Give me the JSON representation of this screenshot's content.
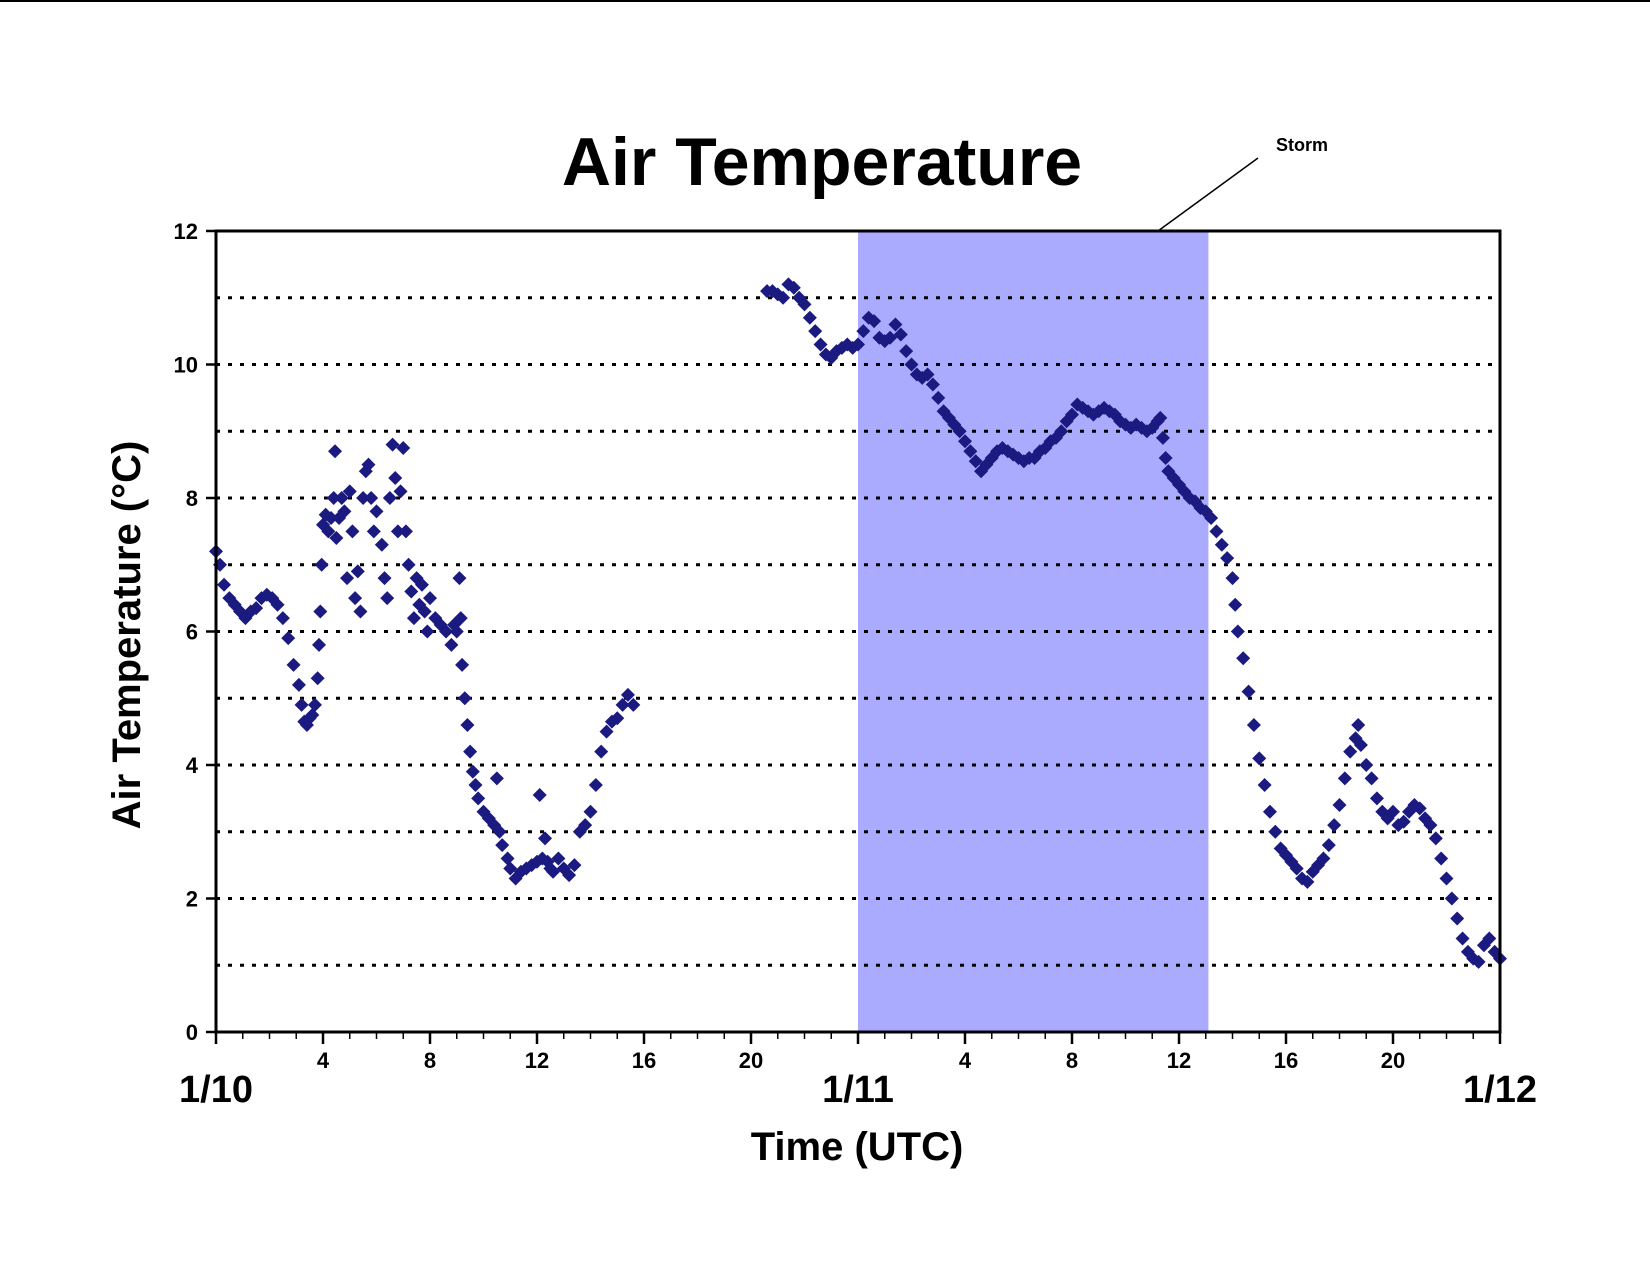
{
  "chart_data": {
    "type": "scatter",
    "title": "Air Temperature",
    "xlabel": "Time (UTC)",
    "ylabel": "Air Temperature (°C)",
    "xlim_hours": [
      0,
      48
    ],
    "ylim": [
      0,
      12
    ],
    "y_ticks": [
      0,
      2,
      4,
      6,
      8,
      10,
      12
    ],
    "y_gridlines_dotted": [
      1,
      2,
      3,
      4,
      5,
      6,
      7,
      8,
      9,
      10,
      11
    ],
    "x_hour_ticks": [
      {
        "h": 4,
        "label": "4"
      },
      {
        "h": 8,
        "label": "8"
      },
      {
        "h": 12,
        "label": "12"
      },
      {
        "h": 16,
        "label": "16"
      },
      {
        "h": 20,
        "label": "20"
      },
      {
        "h": 28,
        "label": "4"
      },
      {
        "h": 32,
        "label": "8"
      },
      {
        "h": 36,
        "label": "12"
      },
      {
        "h": 40,
        "label": "16"
      },
      {
        "h": 44,
        "label": "20"
      }
    ],
    "x_date_labels": [
      {
        "h": 0,
        "label": "1/10"
      },
      {
        "h": 24,
        "label": "1/11"
      },
      {
        "h": 48,
        "label": "1/12"
      }
    ],
    "annotation": {
      "text": "Storm",
      "shaded_range_hours": [
        24,
        37.1
      ],
      "color": "#AAAAFF"
    },
    "marker_color": "#1A1A80",
    "series": [
      {
        "segment": "1/10 early",
        "points": [
          [
            0.0,
            7.2
          ],
          [
            0.15,
            7.0
          ],
          [
            0.3,
            6.7
          ],
          [
            0.5,
            6.5
          ],
          [
            0.7,
            6.4
          ],
          [
            0.9,
            6.3
          ],
          [
            1.1,
            6.2
          ],
          [
            1.3,
            6.3
          ],
          [
            1.5,
            6.35
          ],
          [
            1.7,
            6.5
          ],
          [
            1.9,
            6.55
          ],
          [
            2.1,
            6.5
          ],
          [
            2.3,
            6.4
          ],
          [
            2.5,
            6.2
          ],
          [
            2.7,
            5.9
          ],
          [
            2.9,
            5.5
          ],
          [
            3.1,
            5.2
          ],
          [
            3.2,
            4.9
          ],
          [
            3.3,
            4.65
          ],
          [
            3.4,
            4.6
          ],
          [
            3.5,
            4.7
          ],
          [
            3.6,
            4.75
          ],
          [
            3.7,
            4.9
          ],
          [
            3.8,
            5.3
          ],
          [
            3.85,
            5.8
          ],
          [
            3.9,
            6.3
          ],
          [
            3.95,
            7.0
          ],
          [
            4.0,
            7.6
          ],
          [
            4.1,
            7.75
          ],
          [
            4.2,
            7.5
          ],
          [
            4.3,
            7.7
          ],
          [
            4.4,
            8.0
          ],
          [
            4.45,
            8.7
          ],
          [
            4.5,
            7.4
          ],
          [
            4.6,
            7.7
          ],
          [
            4.7,
            8.0
          ],
          [
            4.8,
            7.8
          ],
          [
            4.9,
            6.8
          ],
          [
            5.0,
            8.1
          ],
          [
            5.1,
            7.5
          ],
          [
            5.2,
            6.5
          ],
          [
            5.3,
            6.9
          ],
          [
            5.4,
            6.3
          ],
          [
            5.5,
            8.0
          ],
          [
            5.6,
            8.4
          ],
          [
            5.7,
            8.5
          ],
          [
            5.8,
            8.0
          ],
          [
            5.9,
            7.5
          ],
          [
            6.0,
            7.8
          ],
          [
            6.2,
            7.3
          ],
          [
            6.3,
            6.8
          ],
          [
            6.4,
            6.5
          ],
          [
            6.5,
            8.0
          ],
          [
            6.6,
            8.8
          ],
          [
            6.7,
            8.3
          ],
          [
            6.8,
            7.5
          ],
          [
            6.9,
            8.1
          ],
          [
            7.0,
            8.75
          ],
          [
            7.1,
            7.5
          ],
          [
            7.2,
            7.0
          ],
          [
            7.3,
            6.6
          ],
          [
            7.4,
            6.2
          ],
          [
            7.5,
            6.8
          ],
          [
            7.6,
            6.4
          ],
          [
            7.7,
            6.7
          ],
          [
            7.8,
            6.3
          ],
          [
            7.9,
            6.0
          ],
          [
            8.0,
            6.5
          ],
          [
            8.2,
            6.2
          ],
          [
            8.4,
            6.1
          ],
          [
            8.6,
            6.0
          ],
          [
            8.8,
            5.8
          ],
          [
            8.9,
            6.1
          ],
          [
            9.0,
            6.0
          ],
          [
            9.1,
            6.8
          ],
          [
            9.15,
            6.2
          ],
          [
            9.2,
            5.5
          ],
          [
            9.3,
            5.0
          ]
        ]
      },
      {
        "segment": "1/10 afternoon",
        "points": [
          [
            9.4,
            4.6
          ],
          [
            9.5,
            4.2
          ],
          [
            9.6,
            3.9
          ],
          [
            9.7,
            3.7
          ],
          [
            9.8,
            3.5
          ],
          [
            10.0,
            3.3
          ],
          [
            10.2,
            3.2
          ],
          [
            10.4,
            3.1
          ],
          [
            10.5,
            3.8
          ],
          [
            10.6,
            3.0
          ],
          [
            10.7,
            2.8
          ],
          [
            10.9,
            2.6
          ],
          [
            11.0,
            2.45
          ],
          [
            11.2,
            2.3
          ],
          [
            11.4,
            2.4
          ],
          [
            11.6,
            2.45
          ],
          [
            11.8,
            2.5
          ],
          [
            12.0,
            2.55
          ],
          [
            12.1,
            3.55
          ],
          [
            12.2,
            2.6
          ],
          [
            12.3,
            2.9
          ],
          [
            12.4,
            2.55
          ],
          [
            12.5,
            2.45
          ],
          [
            12.6,
            2.4
          ],
          [
            12.8,
            2.6
          ],
          [
            13.0,
            2.45
          ],
          [
            13.2,
            2.35
          ],
          [
            13.4,
            2.5
          ],
          [
            13.6,
            3.0
          ],
          [
            13.8,
            3.1
          ],
          [
            14.0,
            3.3
          ],
          [
            14.2,
            3.7
          ],
          [
            14.4,
            4.2
          ],
          [
            14.6,
            4.5
          ],
          [
            14.8,
            4.65
          ],
          [
            15.0,
            4.7
          ],
          [
            15.2,
            4.9
          ],
          [
            15.4,
            5.05
          ],
          [
            15.6,
            4.9
          ]
        ]
      },
      {
        "segment": "1/10 night to 1/11",
        "points": [
          [
            20.6,
            11.1
          ],
          [
            20.8,
            11.1
          ],
          [
            21.0,
            11.05
          ],
          [
            21.2,
            11.0
          ],
          [
            21.4,
            11.2
          ],
          [
            21.6,
            11.15
          ],
          [
            21.8,
            11.0
          ],
          [
            22.0,
            10.9
          ],
          [
            22.2,
            10.7
          ],
          [
            22.4,
            10.5
          ],
          [
            22.6,
            10.3
          ],
          [
            22.8,
            10.15
          ],
          [
            23.0,
            10.1
          ],
          [
            23.2,
            10.2
          ],
          [
            23.4,
            10.25
          ],
          [
            23.6,
            10.3
          ],
          [
            23.8,
            10.25
          ],
          [
            24.0,
            10.3
          ],
          [
            24.2,
            10.5
          ],
          [
            24.4,
            10.7
          ],
          [
            24.6,
            10.65
          ],
          [
            24.8,
            10.4
          ],
          [
            25.0,
            10.35
          ],
          [
            25.2,
            10.4
          ],
          [
            25.4,
            10.6
          ],
          [
            25.6,
            10.45
          ],
          [
            25.8,
            10.2
          ],
          [
            26.0,
            10.0
          ],
          [
            26.2,
            9.85
          ],
          [
            26.4,
            9.8
          ],
          [
            26.6,
            9.85
          ],
          [
            26.8,
            9.7
          ],
          [
            27.0,
            9.5
          ],
          [
            27.2,
            9.3
          ],
          [
            27.4,
            9.2
          ],
          [
            27.6,
            9.1
          ],
          [
            27.8,
            9.0
          ],
          [
            28.0,
            8.85
          ],
          [
            28.2,
            8.7
          ],
          [
            28.4,
            8.55
          ],
          [
            28.6,
            8.4
          ],
          [
            28.8,
            8.5
          ],
          [
            29.0,
            8.6
          ],
          [
            29.2,
            8.7
          ],
          [
            29.4,
            8.75
          ],
          [
            29.6,
            8.7
          ],
          [
            29.8,
            8.65
          ],
          [
            30.0,
            8.6
          ],
          [
            30.2,
            8.55
          ],
          [
            30.4,
            8.6
          ],
          [
            30.6,
            8.6
          ],
          [
            30.8,
            8.7
          ],
          [
            31.0,
            8.75
          ],
          [
            31.2,
            8.85
          ],
          [
            31.4,
            8.9
          ],
          [
            31.6,
            9.0
          ],
          [
            31.8,
            9.15
          ],
          [
            32.0,
            9.25
          ],
          [
            32.2,
            9.4
          ],
          [
            32.4,
            9.35
          ],
          [
            32.6,
            9.3
          ],
          [
            32.8,
            9.25
          ],
          [
            33.0,
            9.3
          ],
          [
            33.2,
            9.35
          ],
          [
            33.4,
            9.3
          ],
          [
            33.6,
            9.25
          ],
          [
            33.8,
            9.15
          ],
          [
            34.0,
            9.1
          ],
          [
            34.2,
            9.05
          ],
          [
            34.4,
            9.1
          ],
          [
            34.6,
            9.05
          ],
          [
            34.8,
            9.0
          ],
          [
            35.0,
            9.05
          ],
          [
            35.2,
            9.15
          ],
          [
            35.3,
            9.2
          ],
          [
            35.4,
            8.9
          ],
          [
            35.5,
            8.6
          ],
          [
            35.6,
            8.4
          ],
          [
            35.8,
            8.3
          ],
          [
            36.0,
            8.2
          ],
          [
            36.2,
            8.1
          ],
          [
            36.4,
            8.0
          ],
          [
            36.6,
            7.95
          ],
          [
            36.8,
            7.85
          ],
          [
            37.0,
            7.8
          ],
          [
            37.2,
            7.7
          ],
          [
            37.4,
            7.5
          ],
          [
            37.6,
            7.3
          ],
          [
            37.8,
            7.1
          ],
          [
            38.0,
            6.8
          ],
          [
            38.1,
            6.4
          ],
          [
            38.2,
            6.0
          ],
          [
            38.4,
            5.6
          ],
          [
            38.6,
            5.1
          ],
          [
            38.8,
            4.6
          ],
          [
            39.0,
            4.1
          ],
          [
            39.2,
            3.7
          ],
          [
            39.4,
            3.3
          ],
          [
            39.6,
            3.0
          ],
          [
            39.8,
            2.75
          ],
          [
            40.0,
            2.65
          ],
          [
            40.2,
            2.55
          ],
          [
            40.4,
            2.45
          ],
          [
            40.6,
            2.3
          ],
          [
            40.8,
            2.25
          ],
          [
            41.0,
            2.4
          ],
          [
            41.2,
            2.5
          ],
          [
            41.4,
            2.6
          ],
          [
            41.6,
            2.8
          ],
          [
            41.8,
            3.1
          ],
          [
            42.0,
            3.4
          ],
          [
            42.2,
            3.8
          ],
          [
            42.4,
            4.2
          ],
          [
            42.6,
            4.4
          ],
          [
            42.7,
            4.6
          ],
          [
            42.8,
            4.3
          ],
          [
            43.0,
            4.0
          ],
          [
            43.2,
            3.8
          ],
          [
            43.4,
            3.5
          ],
          [
            43.6,
            3.3
          ],
          [
            43.8,
            3.2
          ],
          [
            44.0,
            3.3
          ],
          [
            44.2,
            3.1
          ],
          [
            44.4,
            3.15
          ],
          [
            44.6,
            3.3
          ],
          [
            44.8,
            3.4
          ],
          [
            45.0,
            3.35
          ],
          [
            45.2,
            3.2
          ],
          [
            45.4,
            3.1
          ],
          [
            45.6,
            2.9
          ],
          [
            45.8,
            2.6
          ],
          [
            46.0,
            2.3
          ],
          [
            46.2,
            2.0
          ],
          [
            46.4,
            1.7
          ],
          [
            46.6,
            1.4
          ],
          [
            46.8,
            1.2
          ],
          [
            47.0,
            1.1
          ],
          [
            47.2,
            1.05
          ],
          [
            47.4,
            1.3
          ],
          [
            47.6,
            1.4
          ],
          [
            47.8,
            1.2
          ],
          [
            48.0,
            1.1
          ]
        ]
      }
    ]
  }
}
